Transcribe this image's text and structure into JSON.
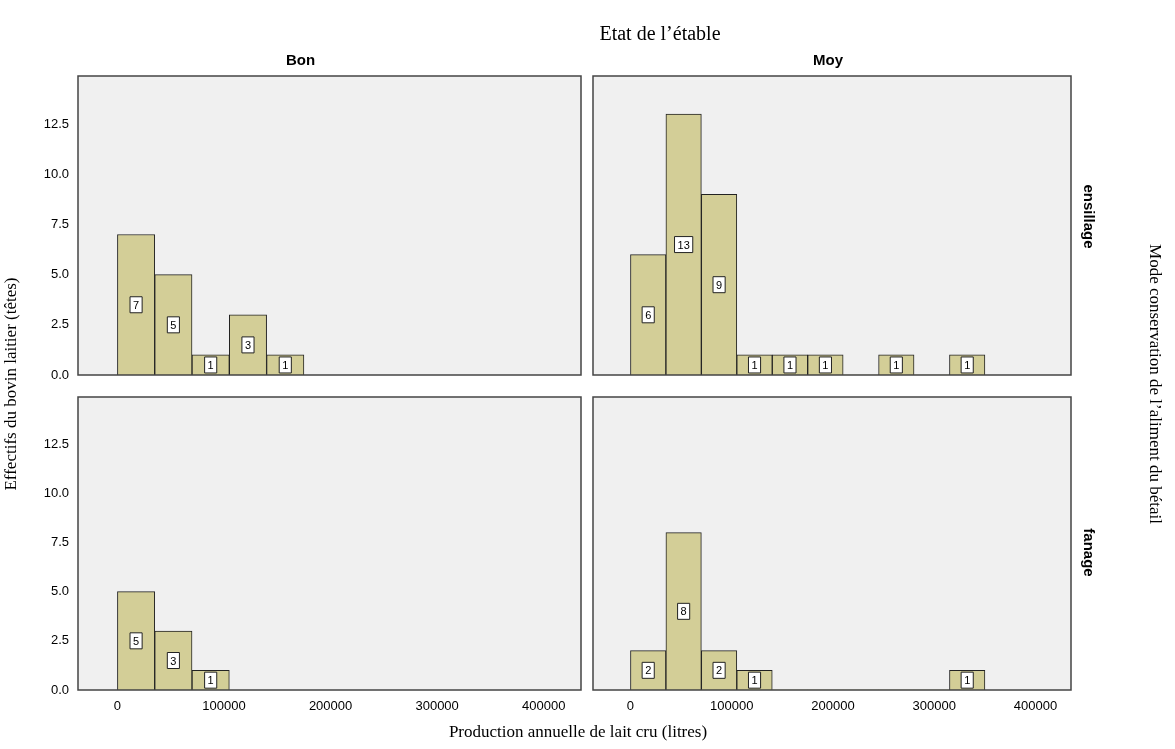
{
  "chart_data": [
    {
      "type": "histogram",
      "title": "Bon",
      "ylabel": "Effectifs du bovin laitier  (têtes)",
      "annotations": [
        "Etat de l’étable",
        "Mode conservation de l’aliment  du bétail"
      ],
      "bins": [
        0,
        35000,
        70000,
        105000,
        140000,
        175000
      ],
      "values": [
        7,
        5,
        1,
        3,
        1
      ],
      "value_labels": [
        "7",
        "5",
        "1",
        "3",
        "1"
      ],
      "color": "#d3ce97",
      "xlim": [
        -37000,
        435000
      ],
      "xticks": [
        0,
        100000,
        200000,
        300000,
        400000
      ],
      "ylim": [
        0,
        14.9
      ],
      "yticks": [
        {
          "value": 0,
          "label": "0.0"
        },
        {
          "value": 2.5,
          "label": "2.5"
        },
        {
          "value": 5,
          "label": "5.0"
        },
        {
          "value": 7.5,
          "label": "7.5"
        },
        {
          "value": 10,
          "label": "10.0"
        },
        {
          "value": 12.5,
          "label": "12.5"
        }
      ],
      "tick_labels": "y"
    },
    {
      "type": "histogram",
      "title": "Moy",
      "y2label": "ensillage",
      "bins": [
        0,
        35000,
        70000,
        105000,
        140000,
        175000,
        210000,
        245000,
        280000,
        315000,
        350000
      ],
      "values": [
        6,
        13,
        9,
        1,
        1,
        1,
        0,
        1,
        0,
        1
      ],
      "value_labels": [
        "6",
        "13",
        "9",
        "1",
        "1",
        "1",
        null,
        "1",
        null,
        "1"
      ],
      "color": "#d3ce97",
      "xlim": [
        -37000,
        435000
      ],
      "xticks": [
        0,
        100000,
        200000,
        300000,
        400000
      ],
      "ylim": [
        0,
        14.9
      ],
      "tick_labels": false
    },
    {
      "type": "histogram",
      "xlabel": "Production annuelle de lait cru (litres)",
      "bins": [
        0,
        35000,
        70000,
        105000
      ],
      "values": [
        5,
        3,
        1
      ],
      "value_labels": [
        "5",
        "3",
        "1"
      ],
      "color": "#d3ce97",
      "xlim": [
        -37000,
        435000
      ],
      "ylim": [
        0,
        14.9
      ],
      "xticks": [
        0,
        100000,
        200000,
        300000,
        400000
      ],
      "yticks": [
        {
          "value": 0,
          "label": "0.0"
        },
        {
          "value": 2.5,
          "label": "2.5"
        },
        {
          "value": 5,
          "label": "5.0"
        },
        {
          "value": 7.5,
          "label": "7.5"
        },
        {
          "value": 10,
          "label": "10.0"
        },
        {
          "value": 12.5,
          "label": "12.5"
        }
      ]
    },
    {
      "type": "histogram",
      "y2label": "fanage",
      "bins": [
        0,
        35000,
        70000,
        105000,
        140000,
        175000,
        210000,
        245000,
        280000,
        315000,
        350000
      ],
      "values": [
        2,
        8,
        2,
        1,
        0,
        0,
        0,
        0,
        0,
        1
      ],
      "value_labels": [
        "2",
        "8",
        "2",
        "1",
        null,
        null,
        null,
        null,
        null,
        "1"
      ],
      "color": "#d3ce97",
      "xlim": [
        -37000,
        435000
      ],
      "ylim": [
        0,
        14.9
      ],
      "xticks": [
        0,
        100000,
        200000,
        300000,
        400000
      ],
      "tick_labels": "x"
    }
  ]
}
